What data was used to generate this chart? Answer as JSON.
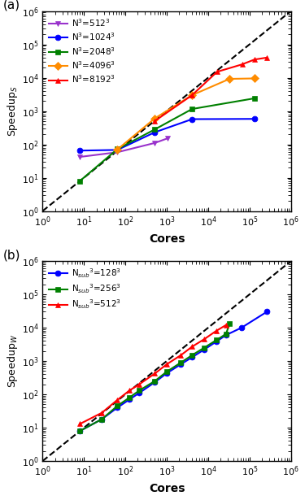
{
  "panel_a": {
    "label": "(a)",
    "ylabel": "Speedup$_S$",
    "xlabel": "Cores",
    "xlim": [
      1,
      1000000
    ],
    "ylim": [
      1,
      1000000
    ],
    "series": [
      {
        "label": "N$^3$=512$^3$",
        "color": "#9932CC",
        "marker": "v",
        "x": [
          8,
          64,
          512,
          1024
        ],
        "y": [
          42,
          58,
          110,
          150
        ]
      },
      {
        "label": "N$^3$=1024$^3$",
        "color": "#0000FF",
        "marker": "o",
        "x": [
          8,
          64,
          512,
          4096,
          131072
        ],
        "y": [
          65,
          68,
          230,
          570,
          580
        ]
      },
      {
        "label": "N$^3$=2048$^3$",
        "color": "#008000",
        "marker": "s",
        "x": [
          8,
          64,
          512,
          4096,
          131072
        ],
        "y": [
          8,
          72,
          280,
          1150,
          2400
        ]
      },
      {
        "label": "N$^3$=4096$^3$",
        "color": "#FF8C00",
        "marker": "D",
        "x": [
          64,
          512,
          4096,
          32768,
          131072
        ],
        "y": [
          70,
          600,
          3000,
          9200,
          9500
        ]
      },
      {
        "label": "N$^3$=8192$^3$",
        "color": "#FF0000",
        "marker": "^",
        "x": [
          512,
          4096,
          16384,
          65536,
          131072,
          262144
        ],
        "y": [
          500,
          3000,
          15000,
          25000,
          35000,
          40000
        ]
      }
    ]
  },
  "panel_b": {
    "label": "(b)",
    "ylabel": "Speedup$_W$",
    "xlabel": "Cores",
    "xlim": [
      1,
      1000000
    ],
    "ylim": [
      1,
      1000000
    ],
    "series": [
      {
        "label": "N$_{sub}$$^3$=128$^3$",
        "color": "#0000FF",
        "marker": "o",
        "x": [
          8,
          27,
          64,
          125,
          216,
          512,
          1000,
          2197,
          4096,
          8000,
          15625,
          27000,
          64000,
          262144
        ],
        "y": [
          8,
          18,
          40,
          70,
          110,
          230,
          430,
          800,
          1300,
          2200,
          3800,
          6000,
          10000,
          30000
        ]
      },
      {
        "label": "N$_{sub}$$^3$=256$^3$",
        "color": "#008000",
        "marker": "s",
        "x": [
          8,
          27,
          64,
          125,
          216,
          512,
          1000,
          2197,
          4096,
          8000,
          15625,
          27000,
          32768
        ],
        "y": [
          8,
          18,
          45,
          80,
          130,
          250,
          480,
          900,
          1500,
          2500,
          4200,
          6500,
          13000
        ]
      },
      {
        "label": "N$_{sub}$$^3$=512$^3$",
        "color": "#FF0000",
        "marker": "^",
        "x": [
          8,
          27,
          64,
          125,
          216,
          512,
          1000,
          2197,
          4096,
          8000,
          15625,
          27000
        ],
        "y": [
          13,
          28,
          68,
          130,
          200,
          420,
          800,
          1500,
          2700,
          4500,
          8000,
          12000
        ]
      }
    ]
  }
}
